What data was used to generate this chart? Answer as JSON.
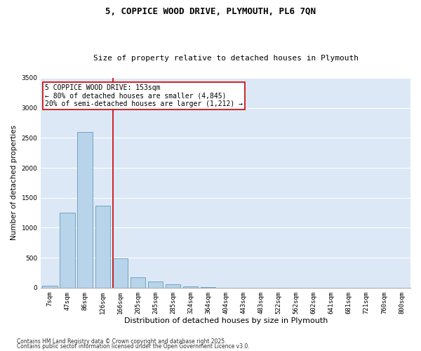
{
  "title": "5, COPPICE WOOD DRIVE, PLYMOUTH, PL6 7QN",
  "subtitle": "Size of property relative to detached houses in Plymouth",
  "xlabel": "Distribution of detached houses by size in Plymouth",
  "ylabel": "Number of detached properties",
  "categories": [
    "7sqm",
    "47sqm",
    "86sqm",
    "126sqm",
    "166sqm",
    "205sqm",
    "245sqm",
    "285sqm",
    "324sqm",
    "364sqm",
    "404sqm",
    "443sqm",
    "483sqm",
    "522sqm",
    "562sqm",
    "602sqm",
    "641sqm",
    "681sqm",
    "721sqm",
    "760sqm",
    "800sqm"
  ],
  "values": [
    35,
    1250,
    2600,
    1370,
    490,
    170,
    100,
    55,
    20,
    5,
    2,
    0,
    0,
    0,
    0,
    0,
    0,
    0,
    0,
    0,
    0
  ],
  "bar_color": "#b8d4ea",
  "bar_edge_color": "#6699bb",
  "vline_color": "#cc0000",
  "annotation_text": "5 COPPICE WOOD DRIVE: 153sqm\n← 80% of detached houses are smaller (4,845)\n20% of semi-detached houses are larger (1,212) →",
  "annotation_box_color": "#cc0000",
  "annotation_fill": "#ffffff",
  "ylim": [
    0,
    3500
  ],
  "yticks": [
    0,
    500,
    1000,
    1500,
    2000,
    2500,
    3000,
    3500
  ],
  "plot_bg_color": "#dce8f5",
  "footer1": "Contains HM Land Registry data © Crown copyright and database right 2025.",
  "footer2": "Contains public sector information licensed under the Open Government Licence v3.0.",
  "title_fontsize": 9,
  "subtitle_fontsize": 8,
  "xlabel_fontsize": 8,
  "ylabel_fontsize": 7.5,
  "tick_fontsize": 6.5,
  "footer_fontsize": 5.5,
  "annot_fontsize": 7
}
